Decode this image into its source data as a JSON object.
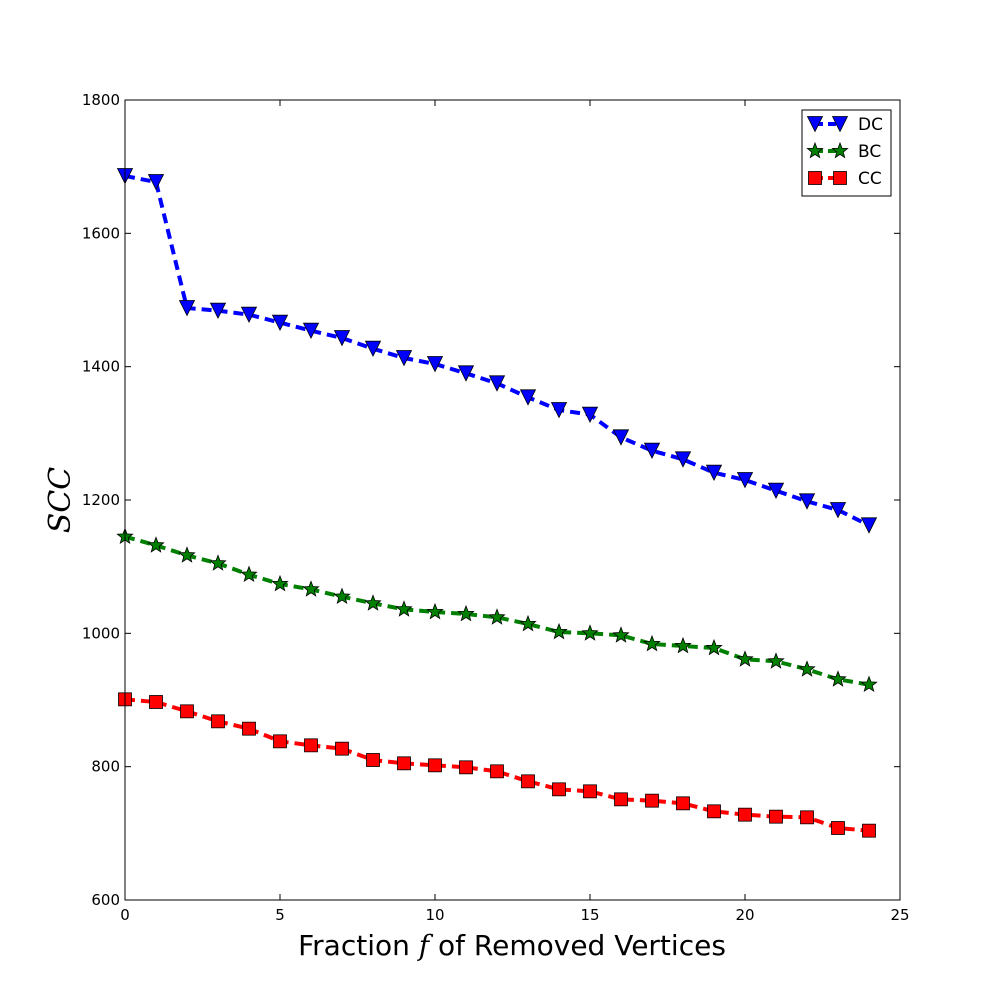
{
  "chart_data": {
    "type": "line",
    "title": "",
    "xlabel_prefix": "Fraction ",
    "xlabel_var": "f",
    "xlabel_suffix": " of Removed Vertices",
    "ylabel": "SCC",
    "xlim": [
      0,
      25
    ],
    "ylim": [
      600,
      1800
    ],
    "xticks": [
      0,
      5,
      10,
      15,
      20,
      25
    ],
    "yticks": [
      600,
      800,
      1000,
      1200,
      1400,
      1600,
      1800
    ],
    "x": [
      0,
      1,
      2,
      3,
      4,
      5,
      6,
      7,
      8,
      9,
      10,
      11,
      12,
      13,
      14,
      15,
      16,
      17,
      18,
      19,
      20,
      21,
      22,
      23,
      24
    ],
    "legend_position": "top-right",
    "grid": false,
    "series": [
      {
        "name": "DC",
        "color": "#0000ff",
        "marker": "triangle-down",
        "values": [
          1686,
          1677,
          1488,
          1484,
          1478,
          1466,
          1454,
          1443,
          1427,
          1413,
          1404,
          1390,
          1375,
          1354,
          1335,
          1328,
          1294,
          1274,
          1261,
          1241,
          1230,
          1214,
          1198,
          1185,
          1162
        ]
      },
      {
        "name": "BC",
        "color": "#008000",
        "marker": "star",
        "values": [
          1145,
          1132,
          1117,
          1105,
          1088,
          1074,
          1066,
          1055,
          1045,
          1036,
          1032,
          1029,
          1024,
          1014,
          1002,
          1000,
          997,
          984,
          981,
          978,
          961,
          958,
          946,
          931,
          923
        ]
      },
      {
        "name": "CC",
        "color": "#ff0000",
        "marker": "square",
        "values": [
          901,
          897,
          883,
          868,
          857,
          838,
          832,
          827,
          810,
          805,
          802,
          799,
          793,
          778,
          766,
          763,
          751,
          749,
          745,
          733,
          728,
          725,
          724,
          708,
          704
        ]
      }
    ]
  }
}
